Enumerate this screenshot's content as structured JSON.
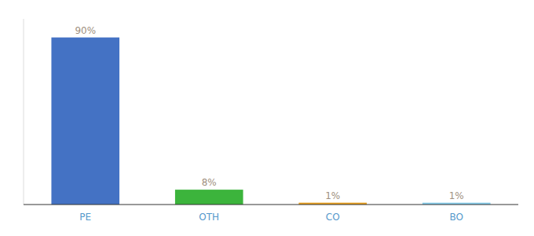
{
  "chart_data": {
    "type": "bar",
    "categories": [
      "PE",
      "OTH",
      "CO",
      "BO"
    ],
    "values": [
      90,
      8,
      1,
      1
    ],
    "value_labels": [
      "90%",
      "8%",
      "1%",
      "1%"
    ],
    "colors": [
      "#4472C4",
      "#3CB43C",
      "#E8A020",
      "#87CEEB"
    ],
    "ylim": [
      0,
      100
    ],
    "data_labels": true,
    "tick_labels": "x",
    "grid": false
  }
}
